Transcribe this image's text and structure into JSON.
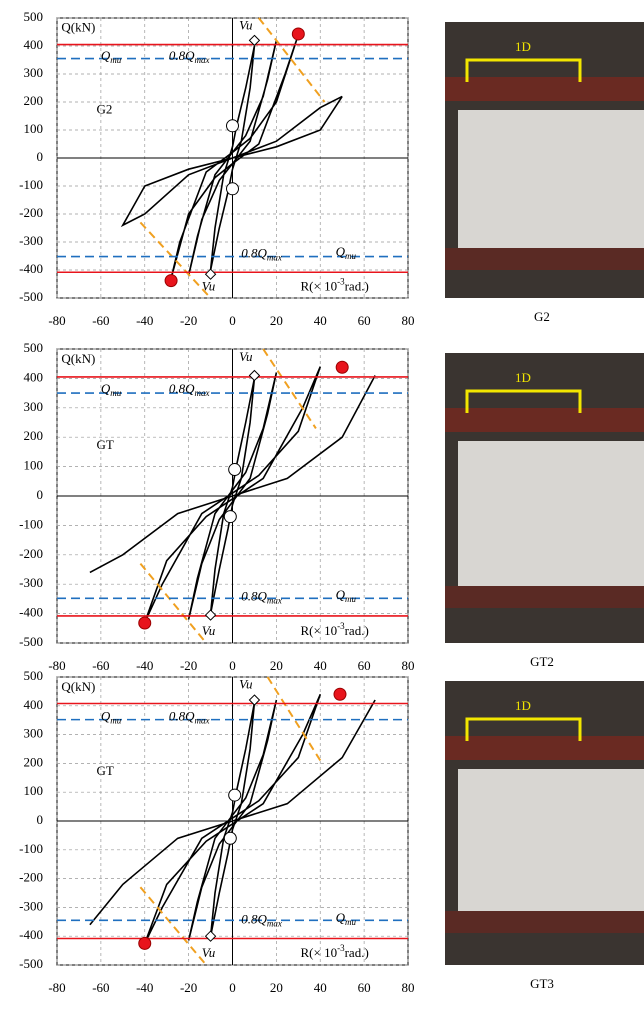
{
  "chart_data": [
    {
      "type": "hysteresis",
      "label": "G2",
      "caption": "G2",
      "photo_note": "1D",
      "xlim": [
        -80,
        80
      ],
      "ylim": [
        -500,
        500
      ],
      "grid": true,
      "xticks": [
        -80,
        -60,
        -40,
        -20,
        0,
        20,
        40,
        60,
        80
      ],
      "yticks": [
        -500,
        -400,
        -300,
        -200,
        -100,
        0,
        100,
        200,
        300,
        400,
        500
      ],
      "y_label": "Q(kN)",
      "qmu": {
        "base": "Q",
        "sub": "mu"
      },
      "q08": {
        "base": "0.8Q",
        "sub": "max"
      },
      "vu": "Vu",
      "r_label": {
        "pre": "R(× 10",
        "sup": "-3",
        "post": "rad.)"
      },
      "qmu_lines": [
        405,
        -408
      ],
      "q08_lines": [
        355,
        -352
      ],
      "peaks": {
        "x": [
          30,
          -28
        ],
        "y": [
          443,
          -438
        ]
      },
      "vu_points": {
        "x": [
          10,
          -10
        ],
        "y": [
          420,
          -415
        ]
      },
      "markers": {
        "x": [
          0,
          0
        ],
        "y": [
          115,
          -110
        ]
      },
      "vu_lines": {
        "x": [
          12,
          42,
          null,
          -42,
          -10
        ],
        "y": [
          500,
          200,
          null,
          -230,
          -500
        ]
      },
      "curve": {
        "x": [
          10,
          6,
          2,
          0,
          -4,
          -8,
          -10,
          -6,
          -2,
          0,
          4,
          8,
          10,
          null,
          20,
          14,
          6,
          0,
          -8,
          -16,
          -20,
          -14,
          -6,
          0,
          8,
          16,
          20,
          null,
          30,
          20,
          8,
          0,
          -12,
          -24,
          -28,
          -20,
          -8,
          0,
          12,
          24,
          30,
          null,
          50,
          40,
          20,
          0,
          -20,
          -40,
          -50,
          -40,
          -20,
          0,
          20,
          40,
          50
        ],
        "y": [
          400,
          250,
          120,
          40,
          -60,
          -250,
          -400,
          -250,
          -120,
          -40,
          60,
          250,
          400,
          null,
          420,
          220,
          80,
          20,
          -60,
          -280,
          -420,
          -220,
          -80,
          -20,
          60,
          280,
          420,
          null,
          440,
          200,
          70,
          20,
          -50,
          -300,
          -430,
          -200,
          -70,
          -20,
          50,
          300,
          440,
          null,
          220,
          100,
          40,
          0,
          -60,
          -200,
          -240,
          -100,
          -40,
          0,
          60,
          180,
          220
        ]
      }
    },
    {
      "type": "hysteresis",
      "label": "GT",
      "caption": "GT2",
      "photo_note": "1D",
      "xlim": [
        -80,
        80
      ],
      "ylim": [
        -500,
        500
      ],
      "grid": true,
      "xticks": [
        -80,
        -60,
        -40,
        -20,
        0,
        20,
        40,
        60,
        80
      ],
      "yticks": [
        -500,
        -400,
        -300,
        -200,
        -100,
        0,
        100,
        200,
        300,
        400,
        500
      ],
      "y_label": "Q(kN)",
      "qmu": {
        "base": "Q",
        "sub": "mu"
      },
      "q08": {
        "base": "0.8Q",
        "sub": "max"
      },
      "vu": "Vu",
      "r_label": {
        "pre": "R(× 10",
        "sup": "-3",
        "post": "rad.)"
      },
      "qmu_lines": [
        405,
        -408
      ],
      "q08_lines": [
        350,
        -348
      ],
      "peaks": {
        "x": [
          50,
          -40
        ],
        "y": [
          438,
          -432
        ]
      },
      "vu_points": {
        "x": [
          10,
          -10
        ],
        "y": [
          410,
          -405
        ]
      },
      "markers": {
        "x": [
          1,
          -1
        ],
        "y": [
          90,
          -70
        ]
      },
      "vu_lines": {
        "x": [
          14,
          38,
          null,
          -42,
          -12
        ],
        "y": [
          500,
          230,
          null,
          -230,
          -500
        ]
      },
      "curve": {
        "x": [
          10,
          6,
          2,
          0,
          -4,
          -8,
          -10,
          -6,
          -2,
          0,
          4,
          8,
          10,
          null,
          20,
          14,
          6,
          0,
          -8,
          -16,
          -20,
          -14,
          -6,
          0,
          8,
          16,
          20,
          null,
          40,
          30,
          12,
          0,
          -14,
          -32,
          -40,
          -30,
          -12,
          0,
          14,
          32,
          40,
          null,
          65,
          50,
          25,
          0,
          -25,
          -50,
          -65,
          -50,
          -25,
          0,
          25,
          50,
          65
        ],
        "y": [
          400,
          250,
          110,
          30,
          -60,
          -250,
          -400,
          -250,
          -110,
          -30,
          60,
          250,
          400,
          null,
          420,
          230,
          80,
          20,
          -60,
          -280,
          -420,
          -230,
          -80,
          -20,
          60,
          280,
          420,
          null,
          440,
          220,
          70,
          10,
          -60,
          -300,
          -430,
          -220,
          -70,
          -10,
          60,
          300,
          440,
          null,
          410,
          200,
          60,
          0,
          -60,
          -200,
          -260,
          -200,
          -60,
          0,
          60,
          200,
          410
        ]
      }
    },
    {
      "type": "hysteresis",
      "label": "GT",
      "caption": "GT3",
      "photo_note": "1D",
      "xlim": [
        -80,
        80
      ],
      "ylim": [
        -500,
        500
      ],
      "grid": true,
      "xticks": [
        -80,
        -60,
        -40,
        -20,
        0,
        20,
        40,
        60,
        80
      ],
      "yticks": [
        -500,
        -400,
        -300,
        -200,
        -100,
        0,
        100,
        200,
        300,
        400,
        500
      ],
      "y_label": "Q(kN)",
      "qmu": {
        "base": "Q",
        "sub": "mu"
      },
      "q08": {
        "base": "0.8Q",
        "sub": "max"
      },
      "vu": "Vu",
      "r_label": {
        "pre": "R(× 10",
        "sup": "-3",
        "post": "rad.)"
      },
      "qmu_lines": [
        408,
        -408
      ],
      "q08_lines": [
        352,
        -345
      ],
      "peaks": {
        "x": [
          49,
          -40
        ],
        "y": [
          440,
          -425
        ]
      },
      "vu_points": {
        "x": [
          10,
          -10
        ],
        "y": [
          420,
          -400
        ]
      },
      "markers": {
        "x": [
          1,
          -1
        ],
        "y": [
          90,
          -60
        ]
      },
      "vu_lines": {
        "x": [
          16,
          40,
          null,
          -42,
          -12
        ],
        "y": [
          500,
          210,
          null,
          -230,
          -500
        ]
      },
      "curve": {
        "x": [
          10,
          6,
          2,
          0,
          -4,
          -8,
          -10,
          -6,
          -2,
          0,
          4,
          8,
          10,
          null,
          20,
          14,
          6,
          0,
          -8,
          -16,
          -20,
          -14,
          -6,
          0,
          8,
          16,
          20,
          null,
          40,
          30,
          12,
          0,
          -14,
          -32,
          -40,
          -30,
          -12,
          0,
          14,
          32,
          40,
          null,
          65,
          50,
          25,
          0,
          -25,
          -50,
          -65,
          -50,
          -25,
          0,
          25,
          50,
          65
        ],
        "y": [
          410,
          250,
          110,
          30,
          -60,
          -250,
          -400,
          -250,
          -110,
          -30,
          60,
          250,
          410,
          null,
          420,
          230,
          80,
          20,
          -60,
          -280,
          -415,
          -230,
          -80,
          -20,
          60,
          280,
          420,
          null,
          440,
          220,
          70,
          10,
          -60,
          -300,
          -425,
          -220,
          -70,
          -10,
          60,
          300,
          440,
          null,
          420,
          220,
          60,
          0,
          -60,
          -220,
          -360,
          -220,
          -60,
          0,
          60,
          220,
          420
        ]
      }
    }
  ]
}
